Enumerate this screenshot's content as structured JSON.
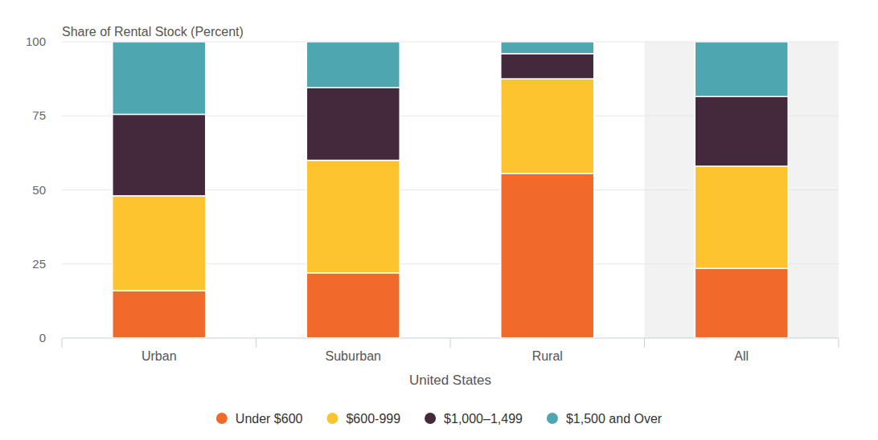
{
  "chart_data": {
    "type": "bar",
    "stacked": true,
    "title": "Share of Rental Stock (Percent)",
    "x_label": "United States",
    "categories": [
      "Urban",
      "Suburban",
      "Rural",
      "All"
    ],
    "series": [
      {
        "name": "Under $600",
        "color": "#f26a2b",
        "values": [
          16,
          22,
          55.5,
          23.5
        ]
      },
      {
        "name": "$600-999",
        "color": "#fec42f",
        "values": [
          32,
          38,
          32,
          34.5
        ]
      },
      {
        "name": "$1,000–1,499",
        "color": "#43293b",
        "values": [
          27.5,
          24.5,
          8.5,
          23.5
        ]
      },
      {
        "name": "$1,500 and Over",
        "color": "#4ea6b0",
        "values": [
          24.5,
          15.5,
          4,
          18.5
        ]
      }
    ],
    "ylim": [
      0,
      100
    ],
    "yticks": [
      0,
      25,
      50,
      75,
      100
    ],
    "grid": true,
    "legend": "bottom"
  }
}
